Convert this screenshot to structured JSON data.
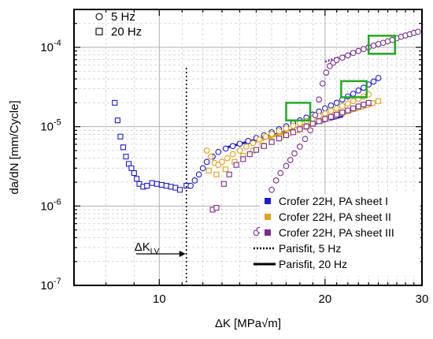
{
  "chart_data": {
    "type": "scatter",
    "xscale": "log",
    "yscale": "log",
    "xlim": [
      7,
      30
    ],
    "ylim": [
      1e-07,
      0.0003
    ],
    "xlabel": "ΔK [MPa√m]",
    "ylabel": "da/dN [mm/Cycle]",
    "xticks": [
      {
        "value": 10,
        "label": "10"
      },
      {
        "value": 20,
        "label": "20"
      },
      {
        "value": 30,
        "label": "30"
      }
    ],
    "yticks": [
      {
        "value": 1e-07,
        "base": "10",
        "exp": "-7"
      },
      {
        "value": 1e-06,
        "base": "10",
        "exp": "-6"
      },
      {
        "value": 1e-05,
        "base": "10",
        "exp": "-5"
      },
      {
        "value": 0.0001,
        "base": "10",
        "exp": "-4"
      }
    ],
    "grid": true,
    "legend_markers": [
      {
        "marker": "circle",
        "label": "5 Hz"
      },
      {
        "marker": "square",
        "label": "20 Hz"
      }
    ],
    "legend_series": [
      {
        "label": "Crofer 22H, PA sheet I",
        "color": "#1c1ccc",
        "kind": "square"
      },
      {
        "label": "Crofer 22H, PA sheet II",
        "color": "#e3a21a",
        "kind": "square"
      },
      {
        "label": "Crofer 22H, PA sheet III",
        "color": "#7b2d8e",
        "kind": "square"
      },
      {
        "label": "Parisfit, 5 Hz",
        "color": "#000000",
        "kind": "dotted"
      },
      {
        "label": "Parisfit, 20 Hz",
        "color": "#000000",
        "kind": "solid"
      }
    ],
    "threshold": {
      "x": 11.2,
      "base": "ΔK",
      "sub": "LV"
    },
    "series": [
      {
        "name": "Crofer 22H, PA sheet I",
        "color": "#1c1ccc",
        "points_5hz": [
          [
            11.4,
            1.8e-06
          ],
          [
            11.6,
            2.1e-06
          ],
          [
            11.8,
            2.5e-06
          ],
          [
            12.0,
            3e-06
          ],
          [
            12.2,
            3.6e-06
          ],
          [
            12.5,
            4.2e-06
          ],
          [
            12.8,
            4.8e-06
          ],
          [
            13.2,
            5.3e-06
          ],
          [
            13.6,
            5.7e-06
          ],
          [
            14.0,
            6.1e-06
          ],
          [
            14.5,
            6.6e-06
          ],
          [
            15.0,
            7.2e-06
          ],
          [
            15.5,
            7.8e-06
          ],
          [
            16.0,
            8.5e-06
          ],
          [
            16.5,
            9.3e-06
          ],
          [
            17.0,
            1.01e-05
          ],
          [
            17.5,
            1.1e-05
          ],
          [
            18.0,
            1.2e-05
          ],
          [
            18.5,
            1.3e-05
          ],
          [
            19.0,
            1.42e-05
          ],
          [
            19.5,
            1.55e-05
          ],
          [
            20.0,
            1.7e-05
          ],
          [
            20.5,
            1.85e-05
          ],
          [
            21.0,
            2e-05
          ],
          [
            21.5,
            2.2e-05
          ],
          [
            22.0,
            2.4e-05
          ],
          [
            22.5,
            2.6e-05
          ],
          [
            23.0,
            2.85e-05
          ],
          [
            23.5,
            3.1e-05
          ],
          [
            24.0,
            3.4e-05
          ],
          [
            24.5,
            3.7e-05
          ],
          [
            25.0,
            4.1e-05
          ]
        ],
        "points_20hz": [
          [
            8.3,
            2e-05
          ],
          [
            8.4,
            1.2e-05
          ],
          [
            8.5,
            7.5e-06
          ],
          [
            8.6,
            5.5e-06
          ],
          [
            8.7,
            4.2e-06
          ],
          [
            8.8,
            3.4e-06
          ],
          [
            8.9,
            3e-06
          ],
          [
            9.0,
            2.6e-06
          ],
          [
            9.1,
            2.2e-06
          ],
          [
            9.2,
            1.9e-06
          ],
          [
            9.35,
            1.75e-06
          ],
          [
            9.5,
            1.8e-06
          ],
          [
            9.7,
            1.95e-06
          ],
          [
            9.9,
            1.9e-06
          ],
          [
            10.1,
            1.85e-06
          ],
          [
            10.3,
            1.8e-06
          ],
          [
            10.5,
            1.75e-06
          ],
          [
            10.7,
            1.7e-06
          ],
          [
            10.9,
            1.6e-06
          ],
          [
            11.2,
            1.8e-06
          ]
        ],
        "fit_20hz": [
          [
            13.3,
            5.5e-06
          ],
          [
            21.5,
            1.35e-05
          ]
        ]
      },
      {
        "name": "Crofer 22H, PA sheet II",
        "color": "#e3a21a",
        "points_5hz": [
          [
            12.2,
            5e-06
          ],
          [
            12.4,
            4.2e-06
          ],
          [
            12.6,
            3.5e-06
          ],
          [
            12.8,
            3.3e-06
          ],
          [
            13.0,
            3.6e-06
          ],
          [
            13.3,
            4e-06
          ],
          [
            13.6,
            4.5e-06
          ],
          [
            14.0,
            5e-06
          ],
          [
            14.4,
            5.6e-06
          ],
          [
            14.8,
            6.2e-06
          ],
          [
            15.2,
            6.9e-06
          ],
          [
            15.6,
            7.5e-06
          ],
          [
            16.0,
            8.1e-06
          ],
          [
            16.5,
            8.8e-06
          ],
          [
            17.0,
            9.5e-06
          ],
          [
            17.5,
            1.03e-05
          ],
          [
            18.0,
            1.1e-05
          ],
          [
            18.5,
            1.18e-05
          ],
          [
            19.0,
            1.27e-05
          ],
          [
            19.5,
            1.37e-05
          ],
          [
            20.0,
            1.47e-05
          ],
          [
            20.5,
            1.58e-05
          ],
          [
            21.0,
            1.7e-05
          ],
          [
            21.5,
            1.82e-05
          ],
          [
            22.0,
            1.95e-05
          ],
          [
            22.5,
            2.1e-05
          ],
          [
            23.0,
            2.25e-05
          ],
          [
            23.5,
            2.4e-05
          ],
          [
            24.0,
            2.55e-05
          ]
        ],
        "points_20hz": [
          [
            12.3,
            2.8e-06
          ],
          [
            12.7,
            2.5e-06
          ],
          [
            13.2,
            2.9e-06
          ],
          [
            13.7,
            3.6e-06
          ],
          [
            14.2,
            4.3e-06
          ],
          [
            14.8,
            5e-06
          ],
          [
            15.4,
            5.8e-06
          ],
          [
            16.0,
            6.6e-06
          ],
          [
            16.6,
            7.4e-06
          ],
          [
            17.2,
            8.2e-06
          ],
          [
            17.8,
            9e-06
          ],
          [
            18.4,
            9.9e-06
          ],
          [
            19.0,
            1.08e-05
          ],
          [
            19.6,
            1.18e-05
          ],
          [
            20.2,
            1.28e-05
          ],
          [
            20.8,
            1.38e-05
          ],
          [
            21.4,
            1.48e-05
          ],
          [
            22.0,
            1.58e-05
          ],
          [
            22.6,
            1.68e-05
          ],
          [
            23.2,
            1.78e-05
          ],
          [
            23.8,
            1.88e-05
          ],
          [
            24.4,
            1.98e-05
          ],
          [
            25.0,
            2.1e-05
          ]
        ],
        "fit_20hz": [
          [
            15.0,
            6.5e-06
          ],
          [
            24.5,
            1.9e-05
          ]
        ]
      },
      {
        "name": "Crofer 22H, PA sheet III",
        "color": "#7b2d8e",
        "points_5hz": [
          [
            15.0,
            4.6e-07
          ],
          [
            15.2,
            5e-07
          ],
          [
            15.5,
            8e-07
          ],
          [
            15.8,
            1.2e-06
          ],
          [
            16.0,
            1.6e-06
          ],
          [
            16.3,
            2.1e-06
          ],
          [
            16.6,
            2.6e-06
          ],
          [
            17.0,
            3.2e-06
          ],
          [
            17.3,
            3.8e-06
          ],
          [
            17.6,
            4.6e-06
          ],
          [
            18.0,
            5.6e-06
          ],
          [
            18.4,
            7e-06
          ],
          [
            18.8,
            9e-06
          ],
          [
            19.2,
            1.4e-05
          ],
          [
            19.5,
            2.2e-05
          ],
          [
            19.8,
            3.5e-05
          ],
          [
            20.1,
            4.8e-05
          ],
          [
            20.4,
            5.8e-05
          ],
          [
            20.7,
            6.4e-05
          ],
          [
            21.0,
            6.9e-05
          ],
          [
            21.5,
            7.4e-05
          ],
          [
            22.0,
            7.9e-05
          ],
          [
            22.5,
            8.5e-05
          ],
          [
            23.0,
            9e-05
          ],
          [
            23.5,
            9.5e-05
          ],
          [
            24.0,
            0.0001
          ],
          [
            24.5,
            0.000105
          ],
          [
            25.0,
            0.00011
          ],
          [
            25.5,
            0.000114
          ],
          [
            26.0,
            0.000119
          ],
          [
            26.5,
            0.000124
          ],
          [
            27.0,
            0.00013
          ],
          [
            27.5,
            0.000136
          ],
          [
            28.0,
            0.000141
          ],
          [
            28.5,
            0.000146
          ],
          [
            29.0,
            0.000152
          ],
          [
            29.5,
            0.000157
          ]
        ],
        "points_20hz": [
          [
            12.5,
            9e-07
          ],
          [
            12.7,
            9.5e-07
          ],
          [
            13.1,
            1.9e-06
          ],
          [
            13.4,
            2.5e-06
          ],
          [
            13.8,
            3.3e-06
          ],
          [
            14.2,
            3.9e-06
          ],
          [
            14.6,
            4.5e-06
          ],
          [
            15.0,
            5.1e-06
          ],
          [
            15.5,
            5.7e-06
          ],
          [
            16.0,
            6.4e-06
          ],
          [
            16.5,
            7.1e-06
          ],
          [
            17.0,
            7.8e-06
          ],
          [
            17.5,
            8.5e-06
          ],
          [
            18.0,
            9.3e-06
          ],
          [
            18.5,
            1.01e-05
          ],
          [
            19.0,
            1.09e-05
          ],
          [
            19.5,
            1.17e-05
          ],
          [
            20.0,
            1.25e-05
          ],
          [
            20.5,
            1.33e-05
          ],
          [
            21.0,
            1.42e-05
          ],
          [
            21.5,
            1.51e-05
          ],
          [
            22.0,
            1.6e-05
          ],
          [
            22.5,
            1.7e-05
          ],
          [
            23.0,
            1.8e-05
          ],
          [
            23.5,
            1.9e-05
          ],
          [
            24.0,
            2e-05
          ]
        ],
        "fit_5hz": [
          [
            20.0,
            6.6e-05
          ],
          [
            29.0,
            0.00015
          ]
        ]
      }
    ],
    "highlight_boxes": [
      {
        "x": [
          17.0,
          18.8
        ],
        "y": [
          1.2e-05,
          2e-05
        ],
        "color": "#22aa22"
      },
      {
        "x": [
          21.4,
          23.8
        ],
        "y": [
          2.35e-05,
          3.75e-05
        ],
        "color": "#22aa22"
      },
      {
        "x": [
          24.0,
          26.8
        ],
        "y": [
          8.3e-05,
          0.00014
        ],
        "color": "#22aa22"
      }
    ]
  }
}
